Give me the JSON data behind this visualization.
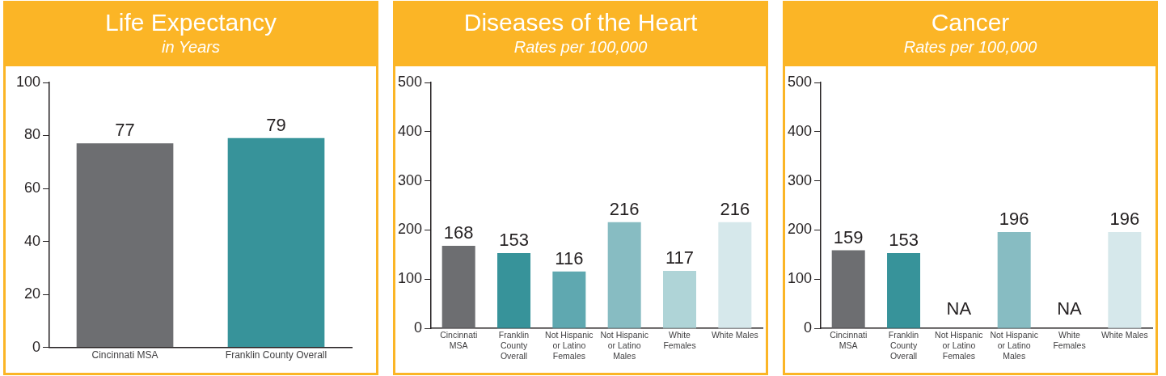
{
  "chart_data": [
    {
      "type": "bar",
      "title": "Life Expectancy",
      "subtitle": "in Years",
      "categories": [
        "Cincinnati MSA",
        "Franklin County Overall"
      ],
      "values": [
        77,
        79
      ],
      "colors": [
        "#6d6e71",
        "#37939a"
      ],
      "ylim": [
        0,
        100
      ],
      "yticks": [
        0,
        20,
        40,
        60,
        80,
        100
      ],
      "grid": false,
      "legend": false,
      "data_labels": true
    },
    {
      "type": "bar",
      "title": "Diseases of the Heart",
      "subtitle": "Rates per 100,000",
      "categories": [
        "Cincinnati MSA",
        "Franklin County Overall",
        "Not Hispanic or Latino Females",
        "Not Hispanic or Latino Males",
        "White Females",
        "White Males"
      ],
      "values": [
        168,
        153,
        116,
        216,
        117,
        216
      ],
      "colors": [
        "#6d6e71",
        "#37939a",
        "#5fa8b0",
        "#87bcc2",
        "#afd4d7",
        "#d6e8eb"
      ],
      "ylim": [
        0,
        500
      ],
      "yticks": [
        0,
        100,
        200,
        300,
        400,
        500
      ],
      "grid": false,
      "legend": false,
      "data_labels": true
    },
    {
      "type": "bar",
      "title": "Cancer",
      "subtitle": "Rates per 100,000",
      "categories": [
        "Cincinnati MSA",
        "Franklin County Overall",
        "Not Hispanic or Latino Females",
        "Not Hispanic or Latino Males",
        "White Females",
        "White Males"
      ],
      "values": [
        159,
        153,
        null,
        196,
        null,
        196
      ],
      "value_labels": [
        "159",
        "153",
        "NA",
        "196",
        "NA",
        "196"
      ],
      "colors": [
        "#6d6e71",
        "#37939a",
        "#5fa8b0",
        "#87bcc2",
        "#afd4d7",
        "#d6e8eb"
      ],
      "ylim": [
        0,
        500
      ],
      "yticks": [
        0,
        100,
        200,
        300,
        400,
        500
      ],
      "grid": false,
      "legend": false
    }
  ]
}
